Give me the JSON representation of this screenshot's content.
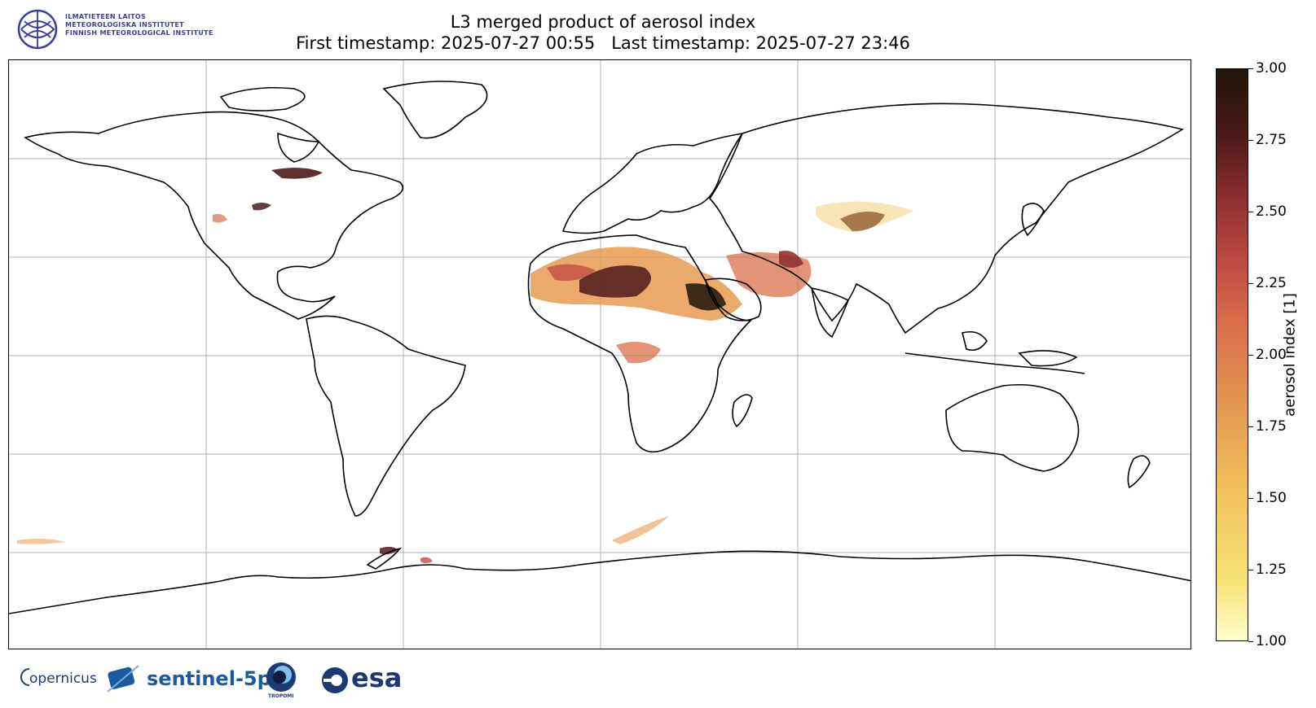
{
  "header": {
    "institute_lines": [
      "ILMATIETEEN LAITOS",
      "METEOROLOGISKA INSTITUTET",
      "FINNISH METEOROLOGICAL INSTITUTE"
    ],
    "title_line1": "L3 merged product of aerosol index",
    "title_line2": "First timestamp: 2025-07-27 00:55   Last timestamp: 2025-07-27 23:46"
  },
  "colorbar": {
    "label": "aerosol index [1]",
    "min": 1.0,
    "max": 3.0,
    "ticks": [
      "3.00",
      "2.75",
      "2.50",
      "2.25",
      "2.00",
      "1.75",
      "1.50",
      "1.25",
      "1.00"
    ],
    "colors": [
      "#ffffcc",
      "#f7e27a",
      "#e59b52",
      "#c14e45",
      "#4d1a1a",
      "#1f1508"
    ]
  },
  "map": {
    "projection": "equirectangular",
    "gridlines": true,
    "grid_color": "#b0b0b0",
    "coastline_color": "#000000"
  },
  "footer": {
    "logos": [
      {
        "name": "copernicus",
        "text": "opernicus"
      },
      {
        "name": "sentinel-5p",
        "text": "sentinel-5p"
      },
      {
        "name": "tropomi",
        "text": "TROPOMI"
      },
      {
        "name": "esa",
        "text": "esa"
      }
    ]
  }
}
